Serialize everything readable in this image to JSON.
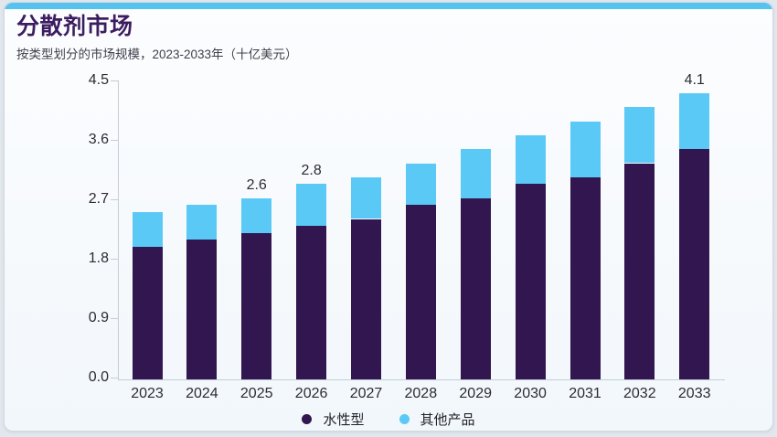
{
  "card": {
    "title": "分散剂市场",
    "subtitle": "按类型划分的市场规模，2023-2033年（十亿美元）"
  },
  "colors": {
    "accent_bar": "#55c3ee",
    "title_text": "#3c1e60",
    "series_water_based": "#31164f",
    "series_other": "#5bc9f5",
    "axis": "#c5cdd4"
  },
  "chart_data": {
    "type": "bar",
    "stacked": true,
    "title": "分散剂市场",
    "subtitle": "按类型划分的市场规模，2023-2033年（十亿美元）",
    "xlabel": "",
    "ylabel": "",
    "categories": [
      "2023",
      "2024",
      "2025",
      "2026",
      "2027",
      "2028",
      "2029",
      "2030",
      "2031",
      "2032",
      "2033"
    ],
    "series": [
      {
        "name": "水性型",
        "color": "#31164f",
        "values": [
          1.9,
          2.0,
          2.1,
          2.2,
          2.3,
          2.5,
          2.6,
          2.8,
          2.9,
          3.1,
          3.3
        ]
      },
      {
        "name": "其他产品",
        "color": "#5bc9f5",
        "values": [
          0.5,
          0.5,
          0.5,
          0.6,
          0.6,
          0.6,
          0.7,
          0.7,
          0.8,
          0.8,
          0.8
        ]
      }
    ],
    "totals": [
      2.4,
      2.5,
      2.6,
      2.8,
      2.9,
      3.1,
      3.3,
      3.5,
      3.7,
      3.9,
      4.1
    ],
    "total_labels_shown": {
      "2025": "2.6",
      "2026": "2.8",
      "2033": "4.1"
    },
    "y_ticks": [
      "4.5",
      "3.6",
      "2.7",
      "1.8",
      "0.9",
      "0.0"
    ],
    "ylim": [
      0,
      4.5
    ],
    "grid": false,
    "legend_position": "bottom"
  }
}
